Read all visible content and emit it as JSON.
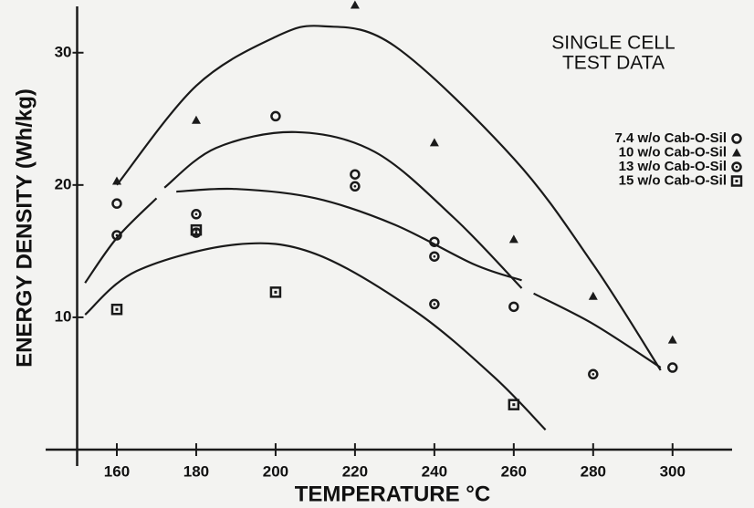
{
  "chart_data": {
    "type": "scatter",
    "annotation": [
      "SINGLE CELL",
      "TEST DATA"
    ],
    "xlabel": "TEMPERATURE  °C",
    "ylabel": "ENERGY DENSITY (Wh/kg)",
    "xlim": [
      150,
      315
    ],
    "ylim": [
      0,
      33.5
    ],
    "xticks": [
      160,
      180,
      200,
      220,
      240,
      260,
      280,
      300
    ],
    "yticks": [
      10,
      20,
      30
    ],
    "grid": false,
    "legend": "upper right",
    "series": [
      {
        "name": "7.4 w/o Cab-O-Sil",
        "color": "#1a1a1a",
        "marker": "circle",
        "x": [
          160,
          200,
          220,
          240,
          260,
          300
        ],
        "values": [
          18.6,
          25.2,
          20.8,
          15.7,
          10.8,
          6.2
        ]
      },
      {
        "name": "10 w/o Cab-O-Sil",
        "color": "#1a1a1a",
        "marker": "triangle",
        "x": [
          160,
          180,
          220,
          240,
          260,
          280,
          300
        ],
        "values": [
          20.3,
          24.9,
          33.6,
          23.2,
          15.9,
          11.6,
          8.3
        ]
      },
      {
        "name": "13 w/o Cab-O-Sil",
        "color": "#1a1a1a",
        "marker": "dotcircle",
        "x": [
          160,
          180,
          180,
          220,
          240,
          240,
          280
        ],
        "values": [
          16.2,
          17.8,
          16.4,
          19.9,
          14.6,
          11.0,
          5.7
        ]
      },
      {
        "name": "15 w/o Cab-O-Sil",
        "color": "#1a1a1a",
        "marker": "square",
        "x": [
          160,
          180,
          200,
          260
        ],
        "values": [
          10.6,
          16.6,
          11.9,
          3.4
        ]
      }
    ],
    "curves": [
      {
        "x": [
          160,
          180,
          200,
          212,
          230,
          260,
          280,
          297
        ],
        "values": [
          20,
          27.5,
          31.2,
          32,
          30.5,
          22,
          14,
          6
        ]
      },
      {
        "x": [
          172,
          185,
          205,
          225,
          245,
          262
        ],
        "values": [
          19.8,
          22.8,
          24,
          22.5,
          17.5,
          12.2
        ]
      },
      {
        "x": [
          175,
          190,
          210,
          230,
          250,
          262
        ],
        "values": [
          19.5,
          19.7,
          19,
          17,
          14,
          12.8
        ]
      },
      {
        "x": [
          265,
          280,
          297
        ],
        "values": [
          11.8,
          9.5,
          6.2
        ]
      },
      {
        "x": [
          152,
          160,
          170
        ],
        "values": [
          12.6,
          16,
          19
        ]
      },
      {
        "x": [
          152,
          165,
          190,
          210,
          235,
          255,
          268
        ],
        "values": [
          10.2,
          13.5,
          15.5,
          14.8,
          10.5,
          5.5,
          1.5
        ]
      }
    ]
  }
}
